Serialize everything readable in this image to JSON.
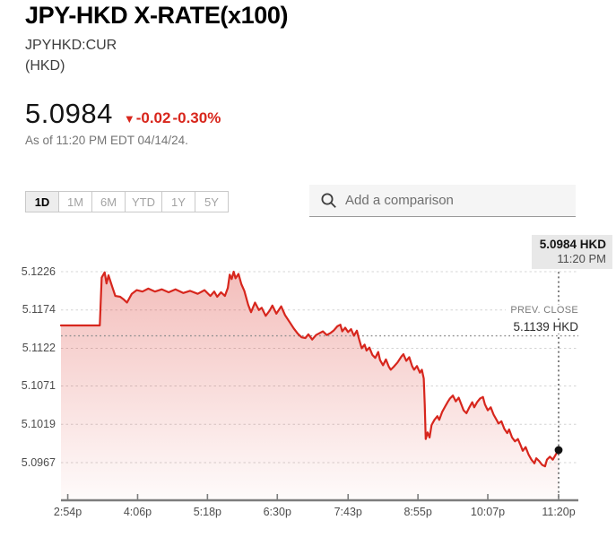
{
  "header": {
    "title": "JPY-HKD X-RATE(x100)",
    "symbol": "JPYHKD:CUR",
    "unit": "(HKD)"
  },
  "quote": {
    "price": "5.0984",
    "change_arrow": "▼",
    "change_abs": "-0.02",
    "change_pct": "-0.30%",
    "change_color": "#d8261c",
    "as_of": "As of 11:20 PM EDT 04/14/24."
  },
  "tabs": {
    "items": [
      {
        "label": "1D",
        "selected": true
      },
      {
        "label": "1M",
        "selected": false
      },
      {
        "label": "6M",
        "selected": false
      },
      {
        "label": "YTD",
        "selected": false
      },
      {
        "label": "1Y",
        "selected": false
      },
      {
        "label": "5Y",
        "selected": false
      }
    ]
  },
  "comparison": {
    "icon": "search-icon",
    "placeholder": "Add a comparison"
  },
  "chart_data": {
    "type": "area",
    "title": "JPY-HKD X-RATE intraday (1D)",
    "ylabel": "HKD",
    "xlabel": "",
    "grid": true,
    "line_color": "#d7261d",
    "ylim": [
      5.0941,
      5.1252
    ],
    "y_ticks": [
      5.1226,
      5.1174,
      5.1122,
      5.1071,
      5.1019,
      5.0967
    ],
    "x_total_min": 513,
    "x_ticks": [
      {
        "label": "2:54p",
        "min": 7
      },
      {
        "label": "4:06p",
        "min": 79
      },
      {
        "label": "5:18p",
        "min": 151
      },
      {
        "label": "6:30p",
        "min": 223
      },
      {
        "label": "7:43p",
        "min": 296
      },
      {
        "label": "8:55p",
        "min": 368
      },
      {
        "label": "10:07p",
        "min": 440
      },
      {
        "label": "11:20p",
        "min": 513
      }
    ],
    "prev_close": {
      "label": "PREV. CLOSE",
      "value_label": "5.1139 HKD",
      "value": 5.1139
    },
    "last_point": {
      "value": 5.0984,
      "min": 513,
      "price_label": "5.0984 HKD",
      "time_label": "11:20 PM"
    },
    "series": [
      {
        "name": "JPYHKD:CUR",
        "color": "#d7261d",
        "points": [
          [
            0,
            5.1153
          ],
          [
            40,
            5.1153
          ],
          [
            42,
            5.1218
          ],
          [
            45,
            5.1225
          ],
          [
            47,
            5.121
          ],
          [
            49,
            5.1221
          ],
          [
            53,
            5.1205
          ],
          [
            56,
            5.1193
          ],
          [
            61,
            5.1192
          ],
          [
            65,
            5.1188
          ],
          [
            68,
            5.1184
          ],
          [
            73,
            5.1196
          ],
          [
            78,
            5.1201
          ],
          [
            84,
            5.1199
          ],
          [
            90,
            5.1203
          ],
          [
            97,
            5.1199
          ],
          [
            104,
            5.1202
          ],
          [
            111,
            5.1198
          ],
          [
            118,
            5.1202
          ],
          [
            126,
            5.1197
          ],
          [
            133,
            5.12
          ],
          [
            141,
            5.1196
          ],
          [
            148,
            5.1201
          ],
          [
            154,
            5.1193
          ],
          [
            158,
            5.1199
          ],
          [
            161,
            5.1192
          ],
          [
            165,
            5.1198
          ],
          [
            169,
            5.1193
          ],
          [
            172,
            5.1204
          ],
          [
            174,
            5.1222
          ],
          [
            176,
            5.1216
          ],
          [
            178,
            5.1226
          ],
          [
            180,
            5.1217
          ],
          [
            183,
            5.1223
          ],
          [
            186,
            5.1209
          ],
          [
            189,
            5.12
          ],
          [
            193,
            5.1181
          ],
          [
            196,
            5.1171
          ],
          [
            200,
            5.1184
          ],
          [
            204,
            5.1174
          ],
          [
            207,
            5.1177
          ],
          [
            211,
            5.1166
          ],
          [
            215,
            5.1173
          ],
          [
            218,
            5.118
          ],
          [
            222,
            5.1169
          ],
          [
            227,
            5.1179
          ],
          [
            231,
            5.1167
          ],
          [
            236,
            5.1157
          ],
          [
            240,
            5.1149
          ],
          [
            244,
            5.1142
          ],
          [
            248,
            5.1137
          ],
          [
            252,
            5.1136
          ],
          [
            255,
            5.1141
          ],
          [
            259,
            5.1134
          ],
          [
            263,
            5.114
          ],
          [
            267,
            5.1143
          ],
          [
            270,
            5.1145
          ],
          [
            274,
            5.114
          ],
          [
            278,
            5.1143
          ],
          [
            281,
            5.1146
          ],
          [
            285,
            5.1152
          ],
          [
            288,
            5.1154
          ],
          [
            290,
            5.1145
          ],
          [
            293,
            5.115
          ],
          [
            296,
            5.1144
          ],
          [
            299,
            5.1148
          ],
          [
            302,
            5.1139
          ],
          [
            305,
            5.1146
          ],
          [
            307,
            5.1136
          ],
          [
            310,
            5.1122
          ],
          [
            313,
            5.1127
          ],
          [
            315,
            5.1119
          ],
          [
            318,
            5.1123
          ],
          [
            321,
            5.1113
          ],
          [
            324,
            5.1109
          ],
          [
            327,
            5.1117
          ],
          [
            329,
            5.1106
          ],
          [
            332,
            5.1099
          ],
          [
            335,
            5.1107
          ],
          [
            338,
            5.1097
          ],
          [
            340,
            5.1093
          ],
          [
            343,
            5.1097
          ],
          [
            347,
            5.1103
          ],
          [
            351,
            5.1111
          ],
          [
            353,
            5.1114
          ],
          [
            356,
            5.1105
          ],
          [
            359,
            5.111
          ],
          [
            362,
            5.1098
          ],
          [
            364,
            5.1093
          ],
          [
            367,
            5.1098
          ],
          [
            370,
            5.1089
          ],
          [
            372,
            5.1093
          ],
          [
            374,
            5.1081
          ],
          [
            375,
            5.1046
          ],
          [
            376,
            5.0999
          ],
          [
            378,
            5.1008
          ],
          [
            380,
            5.1001
          ],
          [
            382,
            5.1018
          ],
          [
            385,
            5.1025
          ],
          [
            388,
            5.103
          ],
          [
            390,
            5.1025
          ],
          [
            393,
            5.1036
          ],
          [
            396,
            5.1043
          ],
          [
            399,
            5.105
          ],
          [
            401,
            5.1054
          ],
          [
            404,
            5.1058
          ],
          [
            407,
            5.105
          ],
          [
            410,
            5.1055
          ],
          [
            413,
            5.1045
          ],
          [
            415,
            5.1038
          ],
          [
            418,
            5.1034
          ],
          [
            421,
            5.1042
          ],
          [
            424,
            5.1049
          ],
          [
            426,
            5.1042
          ],
          [
            429,
            5.1049
          ],
          [
            432,
            5.1054
          ],
          [
            435,
            5.1056
          ],
          [
            437,
            5.1046
          ],
          [
            440,
            5.1038
          ],
          [
            443,
            5.1042
          ],
          [
            446,
            5.1032
          ],
          [
            449,
            5.1025
          ],
          [
            451,
            5.102
          ],
          [
            454,
            5.1023
          ],
          [
            457,
            5.1013
          ],
          [
            460,
            5.1007
          ],
          [
            462,
            5.1012
          ],
          [
            465,
            5.1001
          ],
          [
            468,
            5.0996
          ],
          [
            471,
            5.0999
          ],
          [
            474,
            5.099
          ],
          [
            476,
            5.0983
          ],
          [
            479,
            5.0988
          ],
          [
            482,
            5.0978
          ],
          [
            485,
            5.0971
          ],
          [
            488,
            5.0966
          ],
          [
            490,
            5.0973
          ],
          [
            493,
            5.0969
          ],
          [
            496,
            5.0964
          ],
          [
            499,
            5.0962
          ],
          [
            501,
            5.0971
          ],
          [
            504,
            5.0975
          ],
          [
            507,
            5.0971
          ],
          [
            510,
            5.0978
          ],
          [
            513,
            5.0984
          ]
        ]
      }
    ]
  }
}
